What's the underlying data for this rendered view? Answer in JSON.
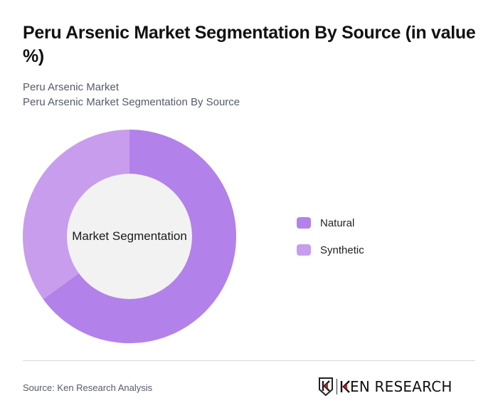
{
  "header": {
    "title": "Peru Arsenic Market Segmentation By Source (in value %)",
    "subtitle_1": "Peru Arsenic Market",
    "subtitle_2": "Peru Arsenic Market Segmentation By Source"
  },
  "chart": {
    "center_label": "Market Segmentation"
  },
  "legend": [
    {
      "label": "Natural",
      "color": "#b381ea"
    },
    {
      "label": "Synthetic",
      "color": "#c89ded"
    }
  ],
  "footer": {
    "source": "Source: Ken Research Analysis",
    "logo_text": "KEN RESEARCH"
  },
  "chart_data": {
    "type": "pie",
    "subtype": "donut",
    "title": "Peru Arsenic Market Segmentation By Source (in value %)",
    "subtitle": "Peru Arsenic Market Segmentation By Source",
    "center_label": "Market Segmentation",
    "categories": [
      "Natural",
      "Synthetic"
    ],
    "values": [
      65,
      35
    ],
    "colors": [
      "#b381ea",
      "#c89ded"
    ],
    "legend_position": "right",
    "start_angle": "12 o'clock, clockwise"
  }
}
